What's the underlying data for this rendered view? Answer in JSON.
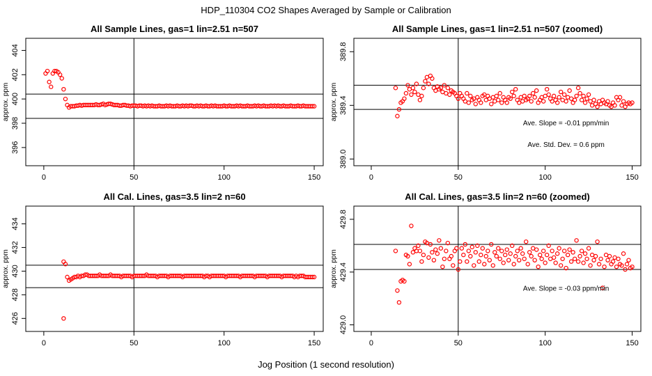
{
  "figure": {
    "title": "HDP_110304  CO2 Shapes Averaged by Sample or Calibration",
    "xlabel": "Jog Position (1 second resolution)"
  },
  "colors": {
    "points": "#ff0000",
    "lines": "#000000"
  },
  "chart_data": [
    {
      "type": "scatter",
      "title": "All Sample Lines, gas=1 lin=2.51 n=507",
      "ylabel": "approx. ppm",
      "xlim": [
        -10,
        155
      ],
      "ylim": [
        394.5,
        405.0
      ],
      "xticks": [
        0,
        50,
        100,
        150
      ],
      "yticks": [
        396,
        398,
        400,
        402,
        404
      ],
      "ytick_labels": [
        "396",
        "398",
        "400",
        "402",
        "404"
      ],
      "hlines": [
        400.4,
        398.4
      ],
      "vline": 50,
      "annotations": [],
      "x": [
        1,
        2,
        3,
        4,
        5,
        6,
        7,
        8,
        9,
        10,
        11,
        12,
        13,
        14,
        15,
        16,
        17,
        18,
        19,
        20,
        21,
        22,
        23,
        24,
        25,
        26,
        27,
        28,
        29,
        30,
        31,
        32,
        33,
        34,
        35,
        36,
        37,
        38,
        39,
        40,
        41,
        42,
        43,
        44,
        45,
        46,
        47,
        48,
        49,
        50,
        51,
        52,
        53,
        54,
        55,
        56,
        57,
        58,
        59,
        60,
        61,
        62,
        63,
        64,
        65,
        66,
        67,
        68,
        69,
        70,
        71,
        72,
        73,
        74,
        75,
        76,
        77,
        78,
        79,
        80,
        81,
        82,
        83,
        84,
        85,
        86,
        87,
        88,
        89,
        90,
        91,
        92,
        93,
        94,
        95,
        96,
        97,
        98,
        99,
        100,
        101,
        102,
        103,
        104,
        105,
        106,
        107,
        108,
        109,
        110,
        111,
        112,
        113,
        114,
        115,
        116,
        117,
        118,
        119,
        120,
        121,
        122,
        123,
        124,
        125,
        126,
        127,
        128,
        129,
        130,
        131,
        132,
        133,
        134,
        135,
        136,
        137,
        138,
        139,
        140,
        141,
        142,
        143,
        144,
        145,
        146,
        147,
        148,
        149,
        150
      ],
      "y": [
        402.1,
        402.3,
        401.4,
        401.0,
        402.1,
        402.3,
        402.3,
        402.2,
        402.0,
        401.7,
        400.8,
        400.0,
        399.5,
        399.3,
        399.4,
        399.4,
        399.4,
        399.45,
        399.45,
        399.5,
        399.45,
        399.5,
        399.5,
        399.5,
        399.5,
        399.5,
        399.5,
        399.5,
        399.55,
        399.5,
        399.5,
        399.55,
        399.6,
        399.5,
        399.55,
        399.6,
        399.6,
        399.55,
        399.5,
        399.5,
        399.5,
        399.45,
        399.45,
        399.5,
        399.5,
        399.45,
        399.45,
        399.4,
        399.45,
        399.45,
        399.45,
        399.4,
        399.45,
        399.45,
        399.4,
        399.45,
        399.4,
        399.45,
        399.4,
        399.45,
        399.4,
        399.4,
        399.4,
        399.45,
        399.4,
        399.4,
        399.4,
        399.45,
        399.4,
        399.45,
        399.4,
        399.4,
        399.4,
        399.45,
        399.4,
        399.4,
        399.45,
        399.4,
        399.45,
        399.4,
        399.45,
        399.45,
        399.4,
        399.4,
        399.45,
        399.4,
        399.45,
        399.4,
        399.4,
        399.45,
        399.4,
        399.4,
        399.45,
        399.4,
        399.45,
        399.4,
        399.4,
        399.4,
        399.4,
        399.45,
        399.4,
        399.4,
        399.45,
        399.4,
        399.4,
        399.4,
        399.45,
        399.4,
        399.45,
        399.4,
        399.4,
        399.4,
        399.45,
        399.4,
        399.4,
        399.4,
        399.45,
        399.4,
        399.45,
        399.4,
        399.4,
        399.45,
        399.4,
        399.4,
        399.4,
        399.45,
        399.4,
        399.45,
        399.4,
        399.45,
        399.4,
        399.4,
        399.45,
        399.4,
        399.4,
        399.4,
        399.45,
        399.4,
        399.4,
        399.4,
        399.45,
        399.4,
        399.4,
        399.45,
        399.4,
        399.4,
        399.4,
        399.4,
        399.4,
        399.4
      ]
    },
    {
      "type": "scatter",
      "title": "All Sample Lines, gas=1 lin=2.51 n=507 (zoomed)",
      "ylabel": "approx. ppm",
      "xlim": [
        -10,
        155
      ],
      "ylim": [
        388.95,
        389.9
      ],
      "xticks": [
        0,
        50,
        100,
        150
      ],
      "yticks": [
        389.0,
        389.4,
        389.8
      ],
      "ytick_labels": [
        "389.0",
        "389.4",
        "389.8"
      ],
      "hlines": [
        389.55,
        389.37
      ],
      "vline": 50,
      "annotations": [
        {
          "text": "Ave. Slope =  -0.01  ppm/min",
          "x": 112,
          "y": 389.25
        },
        {
          "text": "Ave. Std. Dev. =  0.6  ppm",
          "x": 112,
          "y": 389.09
        }
      ],
      "x": [
        14,
        15,
        16,
        17,
        18,
        19,
        20,
        21,
        22,
        23,
        24,
        25,
        26,
        27,
        28,
        29,
        30,
        31,
        32,
        33,
        34,
        35,
        36,
        37,
        38,
        39,
        40,
        41,
        42,
        43,
        44,
        45,
        46,
        47,
        48,
        49,
        50,
        51,
        52,
        53,
        54,
        55,
        56,
        57,
        58,
        59,
        60,
        61,
        62,
        63,
        64,
        65,
        66,
        67,
        68,
        69,
        70,
        71,
        72,
        73,
        74,
        75,
        76,
        77,
        78,
        79,
        80,
        81,
        82,
        83,
        84,
        85,
        86,
        87,
        88,
        89,
        90,
        91,
        92,
        93,
        94,
        95,
        96,
        97,
        98,
        99,
        100,
        101,
        102,
        103,
        104,
        105,
        106,
        107,
        108,
        109,
        110,
        111,
        112,
        113,
        114,
        115,
        116,
        117,
        118,
        119,
        120,
        121,
        122,
        123,
        124,
        125,
        126,
        127,
        128,
        129,
        130,
        131,
        132,
        133,
        134,
        135,
        136,
        137,
        138,
        139,
        140,
        141,
        142,
        143,
        144,
        145,
        146,
        147,
        148,
        149,
        150
      ],
      "y": [
        389.53,
        389.32,
        389.37,
        389.42,
        389.43,
        389.45,
        389.49,
        389.55,
        389.52,
        389.48,
        389.53,
        389.5,
        389.56,
        389.48,
        389.44,
        389.47,
        389.53,
        389.58,
        389.61,
        389.56,
        389.62,
        389.6,
        389.53,
        389.51,
        389.54,
        389.52,
        389.53,
        389.5,
        389.55,
        389.49,
        389.53,
        389.48,
        389.51,
        389.5,
        389.49,
        389.47,
        389.45,
        389.49,
        389.47,
        389.45,
        389.43,
        389.49,
        389.42,
        389.47,
        389.44,
        389.45,
        389.41,
        389.46,
        389.44,
        389.42,
        389.47,
        389.48,
        389.44,
        389.47,
        389.45,
        389.41,
        389.46,
        389.43,
        389.47,
        389.44,
        389.49,
        389.42,
        389.46,
        389.44,
        389.42,
        389.46,
        389.45,
        389.5,
        389.47,
        389.52,
        389.44,
        389.42,
        389.46,
        389.43,
        389.47,
        389.44,
        389.45,
        389.47,
        389.43,
        389.49,
        389.46,
        389.51,
        389.42,
        389.44,
        389.46,
        389.43,
        389.47,
        389.52,
        389.48,
        389.45,
        389.43,
        389.47,
        389.44,
        389.42,
        389.46,
        389.5,
        389.44,
        389.48,
        389.43,
        389.46,
        389.51,
        389.45,
        389.42,
        389.44,
        389.47,
        389.53,
        389.49,
        389.44,
        389.47,
        389.42,
        389.45,
        389.48,
        389.43,
        389.4,
        389.44,
        389.41,
        389.39,
        389.43,
        389.41,
        389.44,
        389.42,
        389.41,
        389.43,
        389.4,
        389.39,
        389.42,
        389.4,
        389.46,
        389.44,
        389.46,
        389.4,
        389.43,
        389.39,
        389.41,
        389.42,
        389.41,
        389.42
      ]
    },
    {
      "type": "scatter",
      "title": "All Cal. Lines, gas=3.5 lin=2 n=60",
      "ylabel": "approx. ppm",
      "xlim": [
        -10,
        155
      ],
      "ylim": [
        424.9,
        435.5
      ],
      "xticks": [
        0,
        50,
        100,
        150
      ],
      "yticks": [
        426,
        428,
        430,
        432,
        434
      ],
      "ytick_labels": [
        "426",
        "428",
        "430",
        "432",
        "434"
      ],
      "hlines": [
        430.5,
        428.6
      ],
      "vline": 50,
      "annotations": [],
      "x": [
        11,
        12,
        13,
        14,
        15,
        16,
        17,
        18,
        19,
        20,
        21,
        22,
        23,
        24,
        25,
        26,
        27,
        28,
        29,
        30,
        31,
        32,
        33,
        34,
        35,
        36,
        37,
        38,
        39,
        40,
        41,
        42,
        43,
        44,
        45,
        46,
        47,
        48,
        49,
        50,
        51,
        52,
        53,
        54,
        55,
        56,
        57,
        58,
        59,
        60,
        61,
        62,
        63,
        64,
        65,
        66,
        67,
        68,
        69,
        70,
        71,
        72,
        73,
        74,
        75,
        76,
        77,
        78,
        79,
        80,
        81,
        82,
        83,
        84,
        85,
        86,
        87,
        88,
        89,
        90,
        91,
        92,
        93,
        94,
        95,
        96,
        97,
        98,
        99,
        100,
        101,
        102,
        103,
        104,
        105,
        106,
        107,
        108,
        109,
        110,
        111,
        112,
        113,
        114,
        115,
        116,
        117,
        118,
        119,
        120,
        121,
        122,
        123,
        124,
        125,
        126,
        127,
        128,
        129,
        130,
        131,
        132,
        133,
        134,
        135,
        136,
        137,
        138,
        139,
        140,
        141,
        142,
        143,
        144,
        145,
        146,
        147,
        148,
        149,
        150,
        11
      ],
      "y": [
        430.8,
        430.6,
        429.5,
        429.2,
        429.3,
        429.4,
        429.5,
        429.5,
        429.6,
        429.5,
        429.6,
        429.6,
        429.7,
        429.7,
        429.6,
        429.6,
        429.6,
        429.6,
        429.6,
        429.6,
        429.7,
        429.6,
        429.6,
        429.6,
        429.6,
        429.6,
        429.7,
        429.6,
        429.6,
        429.6,
        429.6,
        429.6,
        429.5,
        429.6,
        429.6,
        429.6,
        429.6,
        429.6,
        429.5,
        429.6,
        429.6,
        429.6,
        429.6,
        429.6,
        429.6,
        429.6,
        429.7,
        429.6,
        429.6,
        429.6,
        429.6,
        429.6,
        429.5,
        429.6,
        429.6,
        429.6,
        429.6,
        429.6,
        429.5,
        429.6,
        429.6,
        429.6,
        429.6,
        429.6,
        429.6,
        429.6,
        429.5,
        429.6,
        429.6,
        429.6,
        429.6,
        429.6,
        429.6,
        429.6,
        429.6,
        429.6,
        429.6,
        429.6,
        429.5,
        429.6,
        429.6,
        429.5,
        429.6,
        429.6,
        429.6,
        429.6,
        429.6,
        429.6,
        429.6,
        429.6,
        429.5,
        429.6,
        429.6,
        429.6,
        429.6,
        429.6,
        429.6,
        429.6,
        429.5,
        429.6,
        429.6,
        429.6,
        429.6,
        429.6,
        429.6,
        429.6,
        429.5,
        429.6,
        429.6,
        429.6,
        429.6,
        429.6,
        429.6,
        429.5,
        429.6,
        429.6,
        429.6,
        429.6,
        429.6,
        429.6,
        429.6,
        429.5,
        429.6,
        429.6,
        429.6,
        429.6,
        429.6,
        429.6,
        429.5,
        429.6,
        429.5,
        429.6,
        429.6,
        429.6,
        429.5,
        429.5,
        429.5,
        429.5,
        429.5,
        429.5,
        426.0
      ]
    },
    {
      "type": "scatter",
      "title": "All Cal. Lines, gas=3.5 lin=2 n=60 (zoomed)",
      "ylabel": "approx. ppm",
      "xlim": [
        -10,
        155
      ],
      "ylim": [
        428.95,
        429.9
      ],
      "xticks": [
        0,
        50,
        100,
        150
      ],
      "yticks": [
        429.0,
        429.4,
        429.8
      ],
      "ytick_labels": [
        "429.0",
        "429.4",
        "429.8"
      ],
      "hlines": [
        429.61,
        429.42
      ],
      "vline": 50,
      "annotations": [
        {
          "text": "Ave. Slope =  -0.03  ppm/min",
          "x": 112,
          "y": 429.26
        }
      ],
      "x": [
        14,
        15,
        16,
        17,
        18,
        19,
        20,
        21,
        22,
        23,
        24,
        25,
        26,
        27,
        28,
        29,
        30,
        31,
        32,
        33,
        34,
        35,
        36,
        37,
        38,
        39,
        40,
        41,
        42,
        43,
        44,
        45,
        46,
        47,
        48,
        49,
        50,
        51,
        52,
        53,
        54,
        55,
        56,
        57,
        58,
        59,
        60,
        61,
        62,
        63,
        64,
        65,
        66,
        67,
        68,
        69,
        70,
        71,
        72,
        73,
        74,
        75,
        76,
        77,
        78,
        79,
        80,
        81,
        82,
        83,
        84,
        85,
        86,
        87,
        88,
        89,
        90,
        91,
        92,
        93,
        94,
        95,
        96,
        97,
        98,
        99,
        100,
        101,
        102,
        103,
        104,
        105,
        106,
        107,
        108,
        109,
        110,
        111,
        112,
        113,
        114,
        115,
        116,
        117,
        118,
        119,
        120,
        121,
        122,
        123,
        124,
        125,
        126,
        127,
        128,
        129,
        130,
        131,
        132,
        133,
        134,
        135,
        136,
        137,
        138,
        139,
        140,
        141,
        142,
        143,
        144,
        145,
        146,
        147,
        148,
        149,
        150
      ],
      "y": [
        429.56,
        429.26,
        429.17,
        429.33,
        429.34,
        429.33,
        429.53,
        429.52,
        429.46,
        429.75,
        429.55,
        429.58,
        429.56,
        429.6,
        429.56,
        429.48,
        429.53,
        429.63,
        429.62,
        429.51,
        429.61,
        429.55,
        429.49,
        429.57,
        429.54,
        429.64,
        429.58,
        429.44,
        429.5,
        429.56,
        429.62,
        429.5,
        429.52,
        429.45,
        429.56,
        429.58,
        429.42,
        429.48,
        429.58,
        429.53,
        429.61,
        429.48,
        429.56,
        429.52,
        429.59,
        429.45,
        429.55,
        429.6,
        429.48,
        429.53,
        429.58,
        429.46,
        429.52,
        429.56,
        429.49,
        429.61,
        429.45,
        429.55,
        429.52,
        429.58,
        429.5,
        429.56,
        429.47,
        429.53,
        429.57,
        429.49,
        429.54,
        429.6,
        429.46,
        429.52,
        429.56,
        429.49,
        429.58,
        429.54,
        429.5,
        429.63,
        429.46,
        429.55,
        429.52,
        429.58,
        429.49,
        429.57,
        429.44,
        429.53,
        429.5,
        429.56,
        429.47,
        429.53,
        429.6,
        429.5,
        429.56,
        429.51,
        429.47,
        429.54,
        429.58,
        429.45,
        429.5,
        429.56,
        429.43,
        429.53,
        429.57,
        429.48,
        429.55,
        429.5,
        429.64,
        429.48,
        429.52,
        429.56,
        429.47,
        429.54,
        429.5,
        429.58,
        429.45,
        429.53,
        429.49,
        429.52,
        429.63,
        429.46,
        429.5,
        429.28,
        429.44,
        429.53,
        429.49,
        429.52,
        429.46,
        429.48,
        429.51,
        429.44,
        429.5,
        429.46,
        429.45,
        429.54,
        429.42,
        429.46,
        429.49,
        429.43,
        429.44
      ]
    }
  ]
}
